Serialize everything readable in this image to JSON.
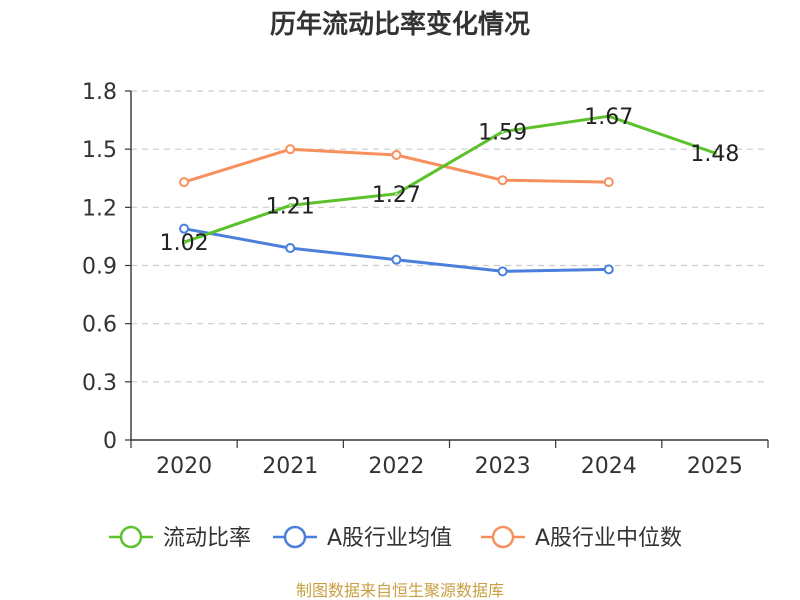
{
  "chart_data": {
    "type": "line",
    "title": "历年流动比率变化情况",
    "categories": [
      "2020",
      "2021",
      "2022",
      "2023",
      "2024",
      "2025"
    ],
    "ylim": [
      0,
      1.8
    ],
    "yticks": [
      "0",
      "0.3",
      "0.6",
      "0.9",
      "1.2",
      "1.5",
      "1.8"
    ],
    "ytick_values": [
      0,
      0.3,
      0.6,
      0.9,
      1.2,
      1.5,
      1.8
    ],
    "grid": true,
    "legend_position": "bottom",
    "series": [
      {
        "name": "流动比率",
        "color": "#5cc22c",
        "values": [
          1.02,
          1.21,
          1.27,
          1.59,
          1.67,
          1.48
        ],
        "labels": [
          "1.02",
          "1.21",
          "1.27",
          "1.59",
          "1.67",
          "1.48"
        ]
      },
      {
        "name": "A股行业均值",
        "color": "#4a7fdc",
        "values": [
          1.09,
          0.99,
          0.93,
          0.87,
          0.88,
          null
        ]
      },
      {
        "name": "A股行业中位数",
        "color": "#f7905d",
        "values": [
          1.33,
          1.5,
          1.47,
          1.34,
          1.33,
          null
        ]
      }
    ]
  },
  "footer": {
    "source": "制图数据来自恒生聚源数据库"
  }
}
